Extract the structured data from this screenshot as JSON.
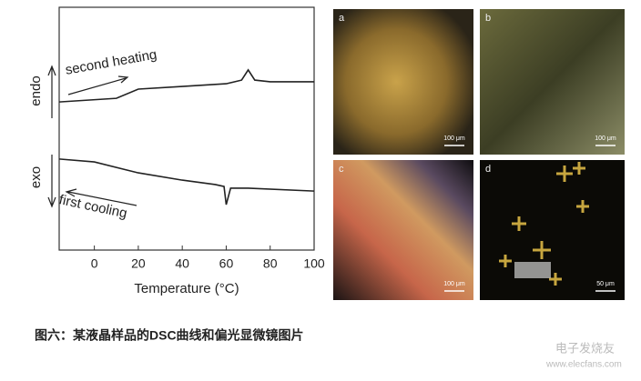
{
  "chart_data": {
    "type": "line",
    "xlabel": "Temperature (°C)",
    "xlim": [
      -16,
      100
    ],
    "xticks": [
      0,
      20,
      40,
      60,
      80,
      100
    ],
    "ylim": [
      0,
      10
    ],
    "annotations": [
      "endo",
      "exo",
      "second heating",
      "first cooling"
    ],
    "series": [
      {
        "name": "second heating",
        "color": "#222222",
        "x": [
          -16,
          10,
          20,
          40,
          60,
          67,
          70,
          73,
          80,
          100
        ],
        "values": [
          6.1,
          6.25,
          6.63,
          6.74,
          6.85,
          7.0,
          7.42,
          7.0,
          6.93,
          6.93
        ]
      },
      {
        "name": "first cooling",
        "color": "#222222",
        "x": [
          -16,
          0,
          20,
          40,
          55,
          59,
          60,
          62,
          70,
          100
        ],
        "values": [
          3.75,
          3.63,
          3.18,
          2.88,
          2.7,
          2.62,
          1.87,
          2.55,
          2.55,
          2.43
        ]
      }
    ]
  },
  "figure": {
    "caption": "图六：某液晶样品的DSC曲线和偏光显微镜图片",
    "panels": [
      {
        "label": "a",
        "scale": "100 μm"
      },
      {
        "label": "b",
        "scale": "100 μm"
      },
      {
        "label": "c",
        "scale": "100 μm"
      },
      {
        "label": "d",
        "scale": "50 μm"
      }
    ],
    "watermark": [
      "电子发烧友",
      "www.elecfans.com"
    ]
  }
}
